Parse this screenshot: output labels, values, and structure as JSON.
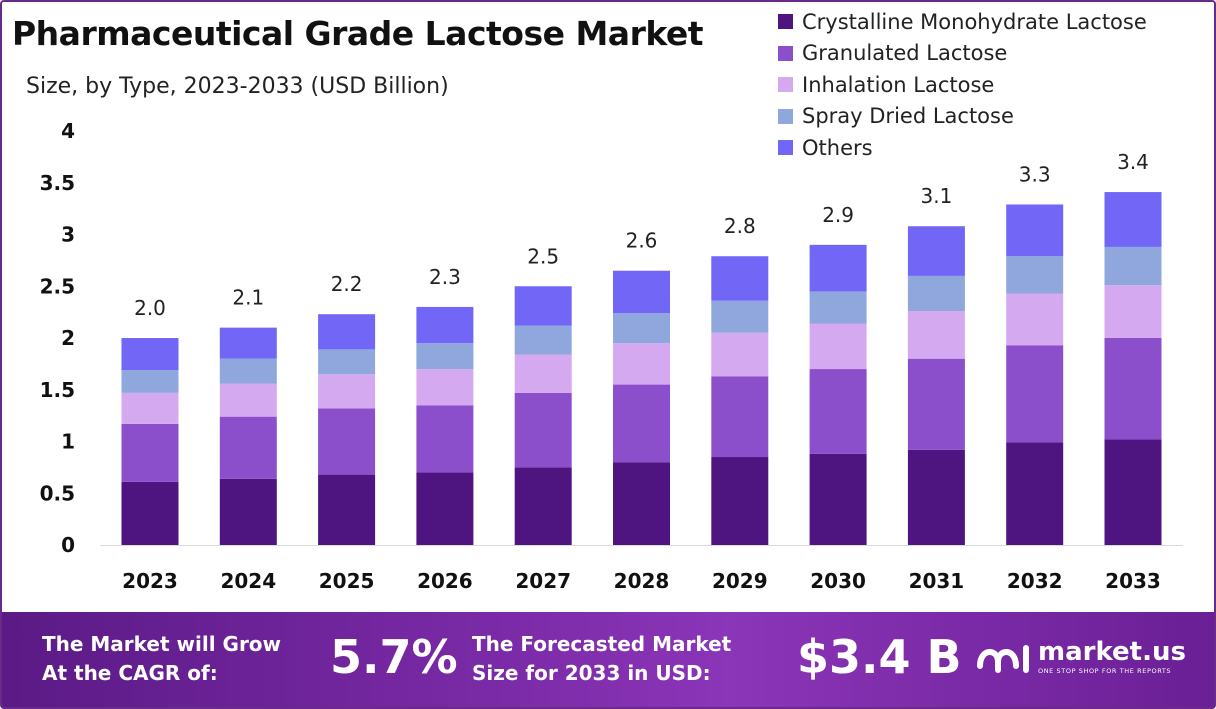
{
  "header": {
    "title": "Pharmaceutical Grade Lactose Market",
    "subtitle": "Size, by Type, 2023-2033 (USD Billion)"
  },
  "chart_data": {
    "type": "bar",
    "stacked": true,
    "categories": [
      "2023",
      "2024",
      "2025",
      "2026",
      "2027",
      "2028",
      "2029",
      "2030",
      "2031",
      "2032",
      "2033"
    ],
    "series": [
      {
        "name": "Crystalline Monohydrate Lactose",
        "color": "#4e1480",
        "values": [
          0.61,
          0.64,
          0.68,
          0.7,
          0.75,
          0.8,
          0.85,
          0.88,
          0.92,
          0.99,
          1.02
        ]
      },
      {
        "name": "Granulated Lactose",
        "color": "#8c4fcc",
        "values": [
          0.56,
          0.6,
          0.64,
          0.65,
          0.72,
          0.75,
          0.78,
          0.82,
          0.88,
          0.94,
          0.98
        ]
      },
      {
        "name": "Inhalation Lactose",
        "color": "#d4a9ef",
        "values": [
          0.3,
          0.32,
          0.33,
          0.35,
          0.37,
          0.4,
          0.42,
          0.44,
          0.46,
          0.5,
          0.51
        ]
      },
      {
        "name": "Spray Dried Lactose",
        "color": "#8fa7dd",
        "values": [
          0.22,
          0.24,
          0.24,
          0.25,
          0.28,
          0.29,
          0.31,
          0.31,
          0.34,
          0.36,
          0.37
        ]
      },
      {
        "name": "Others",
        "color": "#7166f5",
        "values": [
          0.31,
          0.3,
          0.34,
          0.35,
          0.38,
          0.41,
          0.43,
          0.45,
          0.48,
          0.5,
          0.53
        ]
      }
    ],
    "totals_labels": [
      "2.0",
      "2.1",
      "2.2",
      "2.3",
      "2.5",
      "2.6",
      "2.8",
      "2.9",
      "3.1",
      "3.3",
      "3.4"
    ],
    "totals": [
      2.0,
      2.1,
      2.23,
      2.3,
      2.5,
      2.65,
      2.79,
      2.9,
      3.08,
      3.29,
      3.41
    ],
    "yticks": [
      "0",
      "0.5",
      "1",
      "1.5",
      "2",
      "2.5",
      "3",
      "3.5",
      "4"
    ],
    "ylim": [
      0,
      4
    ],
    "grid": false,
    "legend_position": "top-right"
  },
  "footer": {
    "cagr_text_1": "The Market will Grow",
    "cagr_text_2": "At the CAGR of:",
    "cagr_value": "5.7%",
    "forecast_text_1": "The Forecasted Market",
    "forecast_text_2": "Size for 2033 in USD:",
    "forecast_value": "$3.4 B",
    "brand_name": "market.us",
    "brand_tagline": "ONE STOP SHOP FOR THE REPORTS",
    "brand_icon": "market-us-logo-icon"
  }
}
